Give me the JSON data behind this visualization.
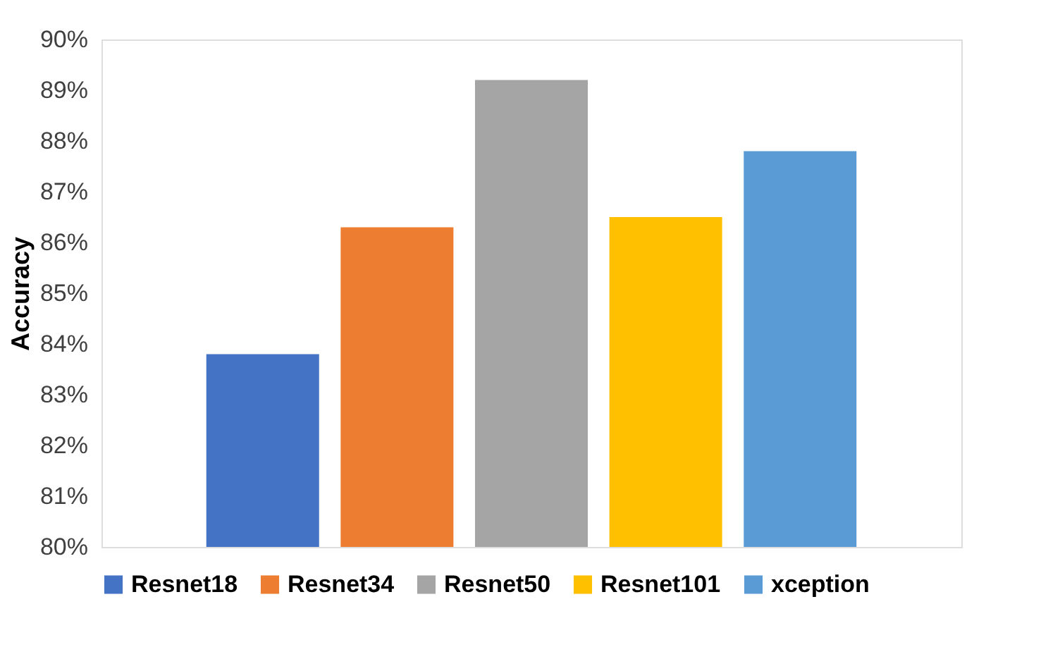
{
  "chart_data": {
    "type": "bar",
    "ylabel": "Accuracy",
    "categories": [
      null
    ],
    "series": [
      {
        "name": "Resnet18",
        "color": "#4472c4",
        "values": [
          83.8
        ]
      },
      {
        "name": "Resnet34",
        "color": "#ed7d31",
        "values": [
          86.3
        ]
      },
      {
        "name": "Resnet50",
        "color": "#a5a5a5",
        "values": [
          89.2
        ]
      },
      {
        "name": "Resnet101",
        "color": "#ffc000",
        "values": [
          86.5
        ]
      },
      {
        "name": "xception",
        "color": "#5b9bd5",
        "values": [
          87.8
        ]
      }
    ],
    "ylim": [
      80,
      90
    ],
    "yticks": [
      {
        "value": 80,
        "label": "80%"
      },
      {
        "value": 81,
        "label": "81%"
      },
      {
        "value": 82,
        "label": "82%"
      },
      {
        "value": 83,
        "label": "83%"
      },
      {
        "value": 84,
        "label": "84%"
      },
      {
        "value": 85,
        "label": "85%"
      },
      {
        "value": 86,
        "label": "86%"
      },
      {
        "value": 87,
        "label": "87%"
      },
      {
        "value": 88,
        "label": "88%"
      },
      {
        "value": 89,
        "label": "89%"
      },
      {
        "value": 90,
        "label": "90%"
      }
    ],
    "legend": "bottom",
    "grid": false,
    "tick_labels": "y"
  }
}
